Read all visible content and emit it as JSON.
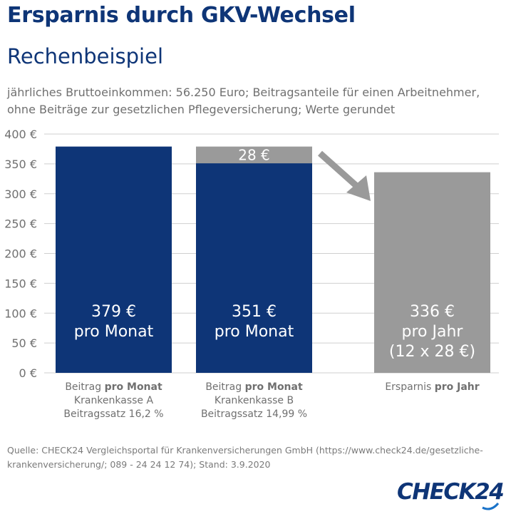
{
  "header": {
    "title": "Ersparnis durch GKV-Wechsel",
    "subtitle": "Rechenbeispiel",
    "description_line1": "jährliches Bruttoeinkommen: 56.250 Euro; Beitragsanteile für einen Arbeitnehmer,",
    "description_line2": "ohne Beiträge zur gesetzlichen Pflegeversicherung; Werte gerundet"
  },
  "chart_data": {
    "type": "bar",
    "ylim": [
      0,
      400
    ],
    "yticks": [
      0,
      50,
      100,
      150,
      200,
      250,
      300,
      350,
      400
    ],
    "ytick_labels": [
      "0 €",
      "50 €",
      "100 €",
      "150 €",
      "200 €",
      "250 €",
      "300 €",
      "350 €",
      "400 €"
    ],
    "grid": true,
    "bars": [
      {
        "value": 379,
        "color": "#0e3577",
        "inner_label": [
          "379 €",
          "pro Monat"
        ],
        "category_lines": [
          [
            "Beitrag ",
            "pro Monat"
          ],
          [
            "Krankenkasse A",
            ""
          ],
          [
            "Beitragssatz 16,2 %",
            ""
          ]
        ]
      },
      {
        "value": 351,
        "stack_top": 28,
        "color": "#0e3577",
        "stack_color": "#9a9a9a",
        "stack_label": "28 €",
        "inner_label": [
          "351 €",
          "pro Monat"
        ],
        "category_lines": [
          [
            "Beitrag ",
            "pro Monat"
          ],
          [
            "Krankenkasse B",
            ""
          ],
          [
            "Beitragssatz  14,99 %",
            ""
          ]
        ]
      },
      {
        "value": 336,
        "color": "#9a9a9a",
        "inner_label": [
          "336 €",
          "pro Jahr",
          "(12 x 28 €)"
        ],
        "category_lines": [
          [
            "Ersparnis ",
            "pro Jahr"
          ]
        ]
      }
    ]
  },
  "footer": {
    "source_line1": "Quelle: CHECK24 Vergleichsportal für Krankenversicherungen GmbH (https://www.check24.de/gesetzliche-",
    "source_line2": "krankenversicherung/; 089 - 24 24 12 74); Stand: 3.9.2020",
    "logo_text": "CHECK24"
  },
  "colors": {
    "brand": "#0e3577",
    "gray": "#9a9a9a",
    "grid": "#cfcfcf",
    "text": "#707070"
  }
}
